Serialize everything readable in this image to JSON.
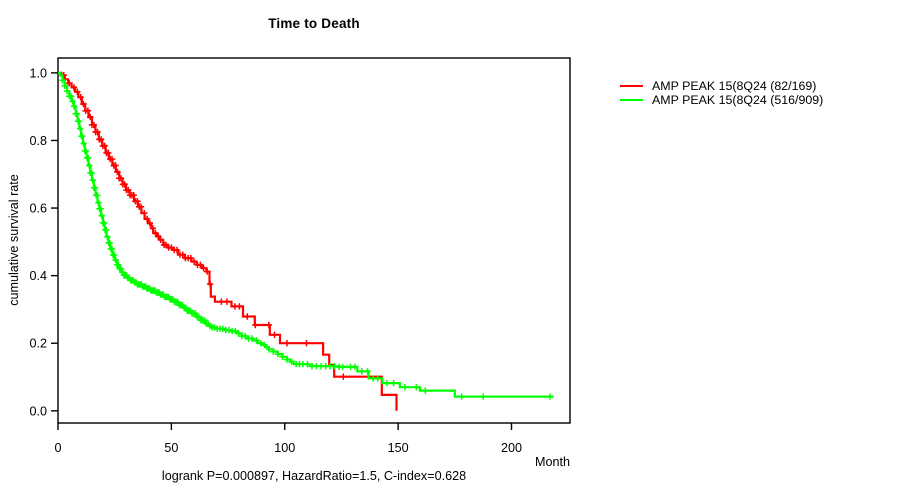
{
  "chart_data": {
    "type": "line",
    "subtype": "kaplan-meier-step-curves",
    "title": "Time to Death",
    "xlabel": "Month",
    "ylabel": "cumulative survival rate",
    "annotation": "logrank P=0.000897, HazardRatio=1.5, C-index=0.628",
    "grid": "off",
    "legend_position": "right-outside",
    "axis_color": "#000000",
    "background_color": "#ffffff",
    "x_ticks": {
      "values": [
        0,
        50,
        100,
        150,
        200
      ],
      "labels": [
        "0",
        "50",
        "100",
        "150",
        "200"
      ]
    },
    "y_ticks": {
      "values": [
        0.0,
        0.2,
        0.4,
        0.6,
        0.8,
        1.0
      ],
      "labels": [
        "0.0",
        "0.2",
        "0.4",
        "0.6",
        "0.8",
        "1.0"
      ]
    },
    "x_range": [
      0,
      225.8
    ],
    "y_range": [
      -0.036,
      1.044
    ],
    "series": [
      {
        "name": "AMP PEAK 15(8Q24 (82/169)",
        "color": "#ff0000",
        "end_time": 149.3,
        "points": [
          [
            0,
            1.0
          ],
          [
            1.5,
            0.993
          ],
          [
            3,
            0.981
          ],
          [
            4.5,
            0.969
          ],
          [
            6,
            0.957
          ],
          [
            7.5,
            0.944
          ],
          [
            9,
            0.928
          ],
          [
            10.5,
            0.908
          ],
          [
            12,
            0.888
          ],
          [
            13.5,
            0.869
          ],
          [
            15,
            0.846
          ],
          [
            16.5,
            0.825
          ],
          [
            18,
            0.803
          ],
          [
            19.5,
            0.784
          ],
          [
            21,
            0.763
          ],
          [
            22.5,
            0.745
          ],
          [
            24,
            0.726
          ],
          [
            25.5,
            0.707
          ],
          [
            27,
            0.688
          ],
          [
            28.5,
            0.67
          ],
          [
            30,
            0.653
          ],
          [
            31.6,
            0.638
          ],
          [
            33.5,
            0.62
          ],
          [
            35.3,
            0.604
          ],
          [
            36.8,
            0.585
          ],
          [
            38.2,
            0.568
          ],
          [
            39.7,
            0.555
          ],
          [
            41.2,
            0.54
          ],
          [
            42,
            0.526
          ],
          [
            43.5,
            0.516
          ],
          [
            44.9,
            0.506
          ],
          [
            46.4,
            0.491
          ],
          [
            48.5,
            0.483
          ],
          [
            50.7,
            0.476
          ],
          [
            52.9,
            0.462
          ],
          [
            55.9,
            0.452
          ],
          [
            58.8,
            0.442
          ],
          [
            61.1,
            0.432
          ],
          [
            63.5,
            0.422
          ],
          [
            65.5,
            0.412
          ],
          [
            66.8,
            0.375
          ],
          [
            67.4,
            0.338
          ],
          [
            69.2,
            0.323
          ],
          [
            76.5,
            0.309
          ],
          [
            81.6,
            0.279
          ],
          [
            86.8,
            0.254
          ],
          [
            93.4,
            0.225
          ],
          [
            97.9,
            0.2
          ],
          [
            116.9,
            0.166
          ],
          [
            119.6,
            0.136
          ],
          [
            121.8,
            0.101
          ],
          [
            142.8,
            0.047
          ],
          [
            149.3,
            0.0
          ]
        ],
        "censor_times": [
          2.5,
          5,
          7,
          8.5,
          10,
          11.2,
          12.2,
          13.2,
          14.2,
          15,
          15.8,
          16.6,
          17.4,
          18.2,
          19,
          19.8,
          20.6,
          21.4,
          22.2,
          23,
          23.8,
          24.6,
          25.4,
          26.2,
          27,
          27.8,
          28.6,
          29.4,
          30.2,
          31,
          31.8,
          32.6,
          33.4,
          34.2,
          35,
          35.8,
          36.6,
          38,
          39.3,
          40.5,
          41.8,
          43,
          44.2,
          45.3,
          46.8,
          47.6,
          48.8,
          50,
          51.3,
          52.5,
          53.8,
          55,
          56.2,
          57.4,
          58.6,
          60,
          61.5,
          62.8,
          64.2,
          65.8,
          67.1,
          72,
          74.5,
          78,
          80,
          83.5,
          87,
          93,
          95.5,
          101,
          109.6,
          125.8
        ]
      },
      {
        "name": "AMP PEAK 15(8Q24 (516/909)",
        "color": "#00ff00",
        "end_time": 218.5,
        "points": [
          [
            0,
            1.0
          ],
          [
            1,
            0.992
          ],
          [
            2,
            0.978
          ],
          [
            3,
            0.962
          ],
          [
            4,
            0.946
          ],
          [
            5,
            0.931
          ],
          [
            6,
            0.916
          ],
          [
            7,
            0.901
          ],
          [
            7.8,
            0.879
          ],
          [
            8.6,
            0.857
          ],
          [
            9.4,
            0.835
          ],
          [
            10.2,
            0.813
          ],
          [
            11,
            0.791
          ],
          [
            11.8,
            0.769
          ],
          [
            12.6,
            0.748
          ],
          [
            13.4,
            0.726
          ],
          [
            14.2,
            0.704
          ],
          [
            15,
            0.682
          ],
          [
            15.8,
            0.66
          ],
          [
            16.6,
            0.638
          ],
          [
            17.4,
            0.616
          ],
          [
            18.2,
            0.598
          ],
          [
            19,
            0.577
          ],
          [
            19.8,
            0.556
          ],
          [
            20.6,
            0.535
          ],
          [
            21.4,
            0.515
          ],
          [
            22.2,
            0.497
          ],
          [
            23,
            0.479
          ],
          [
            24,
            0.461
          ],
          [
            25,
            0.446
          ],
          [
            26,
            0.432
          ],
          [
            27,
            0.42
          ],
          [
            28,
            0.41
          ],
          [
            29,
            0.401
          ],
          [
            30.5,
            0.393
          ],
          [
            32,
            0.386
          ],
          [
            33.5,
            0.38
          ],
          [
            35,
            0.374
          ],
          [
            37,
            0.368
          ],
          [
            39,
            0.362
          ],
          [
            41,
            0.356
          ],
          [
            43,
            0.35
          ],
          [
            45,
            0.344
          ],
          [
            47,
            0.337
          ],
          [
            49,
            0.33
          ],
          [
            51,
            0.322
          ],
          [
            53,
            0.313
          ],
          [
            55,
            0.305
          ],
          [
            57,
            0.296
          ],
          [
            59,
            0.288
          ],
          [
            61,
            0.278
          ],
          [
            63,
            0.268
          ],
          [
            65,
            0.258
          ],
          [
            66.5,
            0.251
          ],
          [
            68,
            0.247
          ],
          [
            70,
            0.243
          ],
          [
            73,
            0.239
          ],
          [
            76,
            0.236
          ],
          [
            79,
            0.229
          ],
          [
            81,
            0.221
          ],
          [
            83,
            0.214
          ],
          [
            86,
            0.208
          ],
          [
            88,
            0.2
          ],
          [
            90,
            0.195
          ],
          [
            91.5,
            0.189
          ],
          [
            93,
            0.182
          ],
          [
            95,
            0.175
          ],
          [
            97,
            0.168
          ],
          [
            99,
            0.16
          ],
          [
            101,
            0.152
          ],
          [
            102.5,
            0.145
          ],
          [
            104,
            0.138
          ],
          [
            111,
            0.132
          ],
          [
            124,
            0.13
          ],
          [
            132,
            0.117
          ],
          [
            137,
            0.096
          ],
          [
            143,
            0.082
          ],
          [
            150.8,
            0.07
          ],
          [
            159.6,
            0.06
          ],
          [
            175,
            0.042
          ]
        ],
        "censor_times": [
          2,
          3,
          4,
          5,
          5.7,
          6.4,
          7.1,
          7.8,
          8.3,
          8.8,
          9.3,
          9.8,
          10.3,
          10.8,
          11.3,
          11.8,
          12.3,
          12.8,
          13.3,
          13.8,
          14.3,
          14.8,
          15.3,
          15.8,
          16.3,
          16.8,
          17.3,
          17.8,
          18.3,
          18.8,
          19.3,
          19.8,
          20.3,
          20.8,
          21.3,
          21.8,
          22.3,
          22.8,
          23.3,
          23.8,
          24.3,
          24.8,
          25.4,
          26,
          26.6,
          27.2,
          27.8,
          28.4,
          29,
          29.6,
          30.2,
          30.8,
          31.4,
          32,
          32.6,
          33.2,
          33.8,
          34.4,
          35,
          35.6,
          36.2,
          36.8,
          37.4,
          38,
          38.6,
          39.2,
          39.8,
          40.4,
          41,
          41.6,
          42.2,
          42.8,
          43.4,
          44,
          44.6,
          45.2,
          45.8,
          46.4,
          47,
          47.6,
          48.2,
          48.8,
          49.4,
          50,
          50.7,
          51.4,
          52.1,
          52.8,
          53.5,
          54.2,
          54.9,
          55.6,
          56.3,
          57,
          57.7,
          58.4,
          59.1,
          59.8,
          60.6,
          61.4,
          62.2,
          63,
          63.8,
          64.6,
          65.4,
          66.2,
          67,
          68,
          69,
          70.2,
          71.4,
          72.6,
          74,
          75.4,
          76.8,
          78.2,
          79.6,
          81,
          82.5,
          84,
          85.5,
          87.5,
          89.5,
          91,
          93,
          95,
          97,
          99,
          101,
          103,
          105,
          106.5,
          108,
          110,
          112,
          114,
          116,
          118,
          120,
          122,
          124,
          125.5,
          129,
          131,
          134,
          136.5,
          139,
          141,
          145,
          148,
          153,
          158,
          162,
          178,
          187.5,
          217
        ]
      }
    ]
  }
}
